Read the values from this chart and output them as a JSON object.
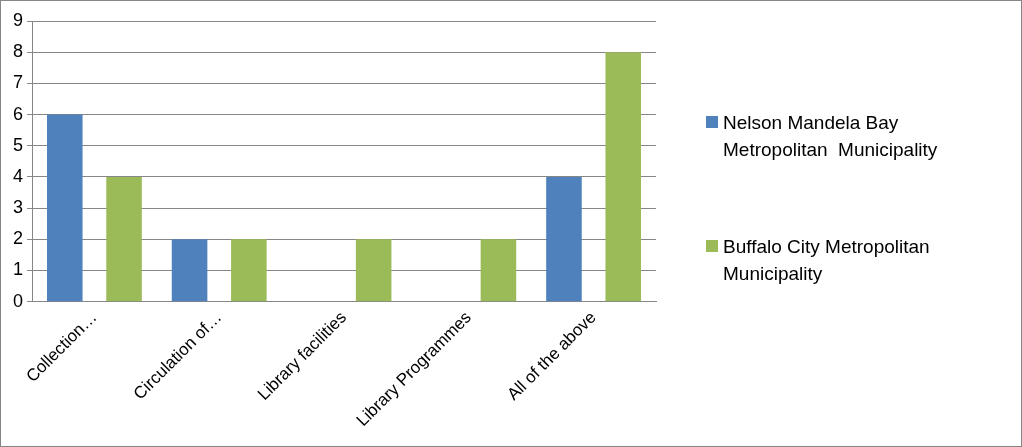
{
  "chart_data": {
    "type": "bar",
    "categories": [
      "Collection…",
      "Circulation of…",
      "Library facilities",
      "Library Programmes",
      "All of the above"
    ],
    "series": [
      {
        "name": "Nelson Mandela Bay Metropolitan  Municipality",
        "color": "#4f81bd",
        "values": [
          6,
          2,
          0,
          0,
          4
        ]
      },
      {
        "name": "Buffalo City Metropolitan Municipality",
        "color": "#9bbb59",
        "values": [
          4,
          2,
          2,
          2,
          8
        ]
      }
    ],
    "ylim": [
      0,
      9
    ],
    "yticks": [
      0,
      1,
      2,
      3,
      4,
      5,
      6,
      7,
      8,
      9
    ],
    "grid": "y",
    "legend": "right"
  }
}
